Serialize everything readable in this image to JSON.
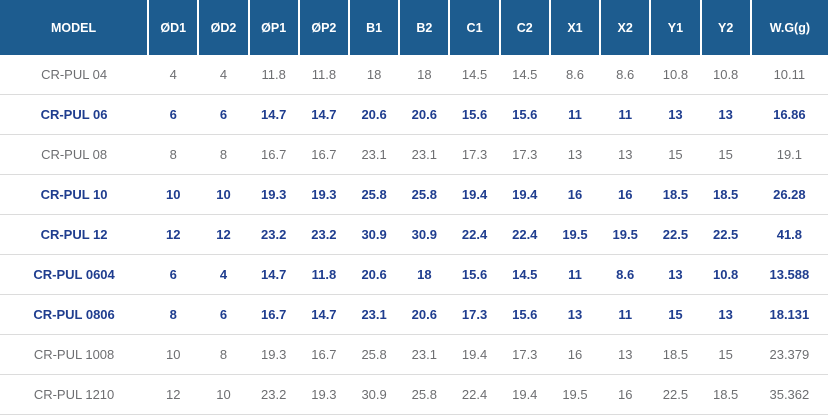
{
  "colors": {
    "header_bg": "#1d5c8f",
    "header_text": "#ffffff",
    "highlight_row_text": "#1f3d8f",
    "regular_row_text": "#6d6e71",
    "row_divider": "#dcdcdc"
  },
  "table": {
    "columns": [
      "MODEL",
      "ØD1",
      "ØD2",
      "ØP1",
      "ØP2",
      "B1",
      "B2",
      "C1",
      "C2",
      "X1",
      "X2",
      "Y1",
      "Y2",
      "W.G(g)"
    ],
    "rows": [
      {
        "model": "CR-PUL 04",
        "bold": false,
        "values": [
          "4",
          "4",
          "11.8",
          "11.8",
          "18",
          "18",
          "14.5",
          "14.5",
          "8.6",
          "8.6",
          "10.8",
          "10.8",
          "10.11"
        ]
      },
      {
        "model": "CR-PUL 06",
        "bold": true,
        "values": [
          "6",
          "6",
          "14.7",
          "14.7",
          "20.6",
          "20.6",
          "15.6",
          "15.6",
          "11",
          "11",
          "13",
          "13",
          "16.86"
        ]
      },
      {
        "model": "CR-PUL 08",
        "bold": false,
        "values": [
          "8",
          "8",
          "16.7",
          "16.7",
          "23.1",
          "23.1",
          "17.3",
          "17.3",
          "13",
          "13",
          "15",
          "15",
          "19.1"
        ]
      },
      {
        "model": "CR-PUL 10",
        "bold": true,
        "values": [
          "10",
          "10",
          "19.3",
          "19.3",
          "25.8",
          "25.8",
          "19.4",
          "19.4",
          "16",
          "16",
          "18.5",
          "18.5",
          "26.28"
        ]
      },
      {
        "model": "CR-PUL 12",
        "bold": true,
        "values": [
          "12",
          "12",
          "23.2",
          "23.2",
          "30.9",
          "30.9",
          "22.4",
          "22.4",
          "19.5",
          "19.5",
          "22.5",
          "22.5",
          "41.8"
        ]
      },
      {
        "model": "CR-PUL 0604",
        "bold": true,
        "values": [
          "6",
          "4",
          "14.7",
          "11.8",
          "20.6",
          "18",
          "15.6",
          "14.5",
          "11",
          "8.6",
          "13",
          "10.8",
          "13.588"
        ]
      },
      {
        "model": "CR-PUL 0806",
        "bold": true,
        "values": [
          "8",
          "6",
          "16.7",
          "14.7",
          "23.1",
          "20.6",
          "17.3",
          "15.6",
          "13",
          "11",
          "15",
          "13",
          "18.131"
        ]
      },
      {
        "model": "CR-PUL 1008",
        "bold": false,
        "values": [
          "10",
          "8",
          "19.3",
          "16.7",
          "25.8",
          "23.1",
          "19.4",
          "17.3",
          "16",
          "13",
          "18.5",
          "15",
          "23.379"
        ]
      },
      {
        "model": "CR-PUL 1210",
        "bold": false,
        "values": [
          "12",
          "10",
          "23.2",
          "19.3",
          "30.9",
          "25.8",
          "22.4",
          "19.4",
          "19.5",
          "16",
          "22.5",
          "18.5",
          "35.362"
        ]
      }
    ]
  }
}
